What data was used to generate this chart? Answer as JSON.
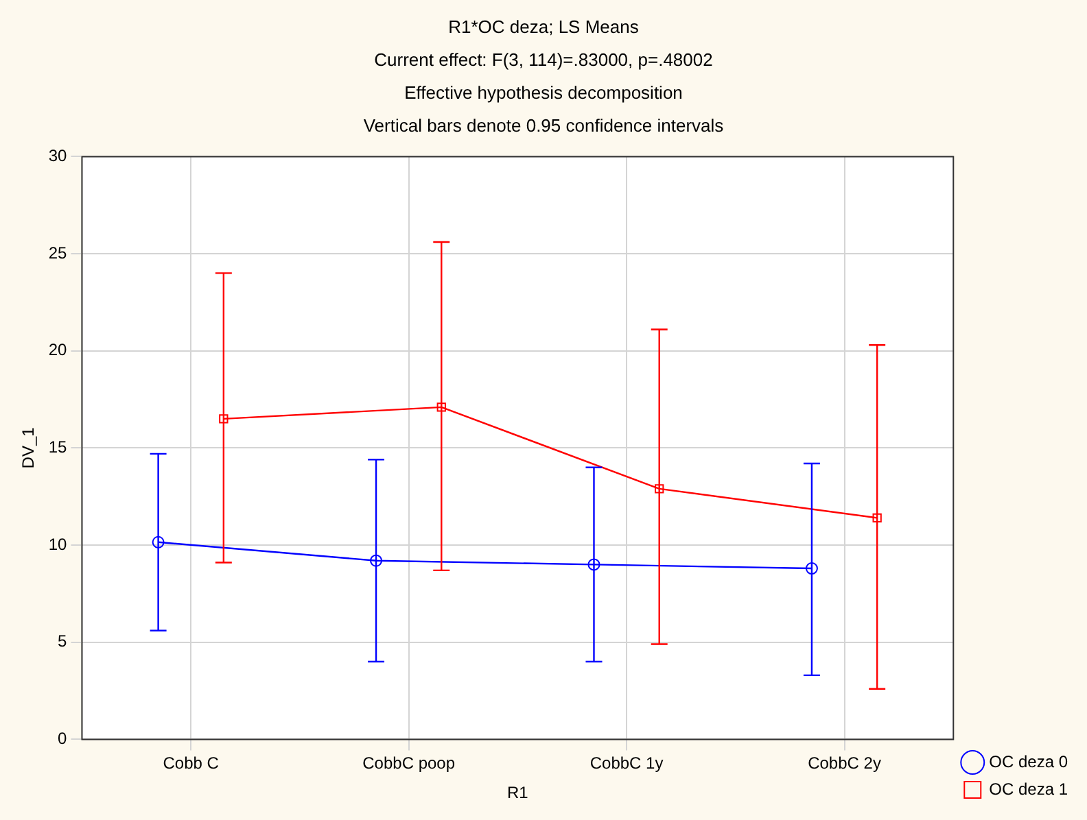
{
  "chart_data": {
    "type": "line",
    "title": "R1*OC deza; LS Means",
    "subtitle": "Current effect: F(3, 114)=.83000, p=.48002",
    "annotations": [
      "Effective hypothesis decomposition",
      "Vertical bars denote 0.95 confidence intervals"
    ],
    "xlabel": "R1",
    "ylabel": "DV_1",
    "categories": [
      "Cobb C",
      "CobbC poop",
      "CobbC 1y",
      "CobbC 2y"
    ],
    "ylim": [
      0,
      30
    ],
    "yticks": [
      0,
      5,
      10,
      15,
      20,
      25,
      30
    ],
    "grid": true,
    "legend": "bottom right",
    "line_style": "solid",
    "series": [
      {
        "name": "OC deza 0",
        "color": "#0000ff",
        "marker": "circle",
        "values": [
          10.15,
          9.2,
          9.0,
          8.8
        ],
        "errors": [
          [
            5.6,
            14.7
          ],
          [
            4.0,
            14.4
          ],
          [
            4.0,
            14.0
          ],
          [
            3.3,
            14.2
          ]
        ]
      },
      {
        "name": "OC deza 1",
        "color": "#ff0000",
        "marker": "square",
        "values": [
          16.5,
          17.1,
          12.9,
          11.4
        ],
        "errors": [
          [
            9.1,
            24.0
          ],
          [
            8.7,
            25.6
          ],
          [
            4.9,
            21.1
          ],
          [
            2.6,
            20.3
          ]
        ]
      }
    ]
  }
}
